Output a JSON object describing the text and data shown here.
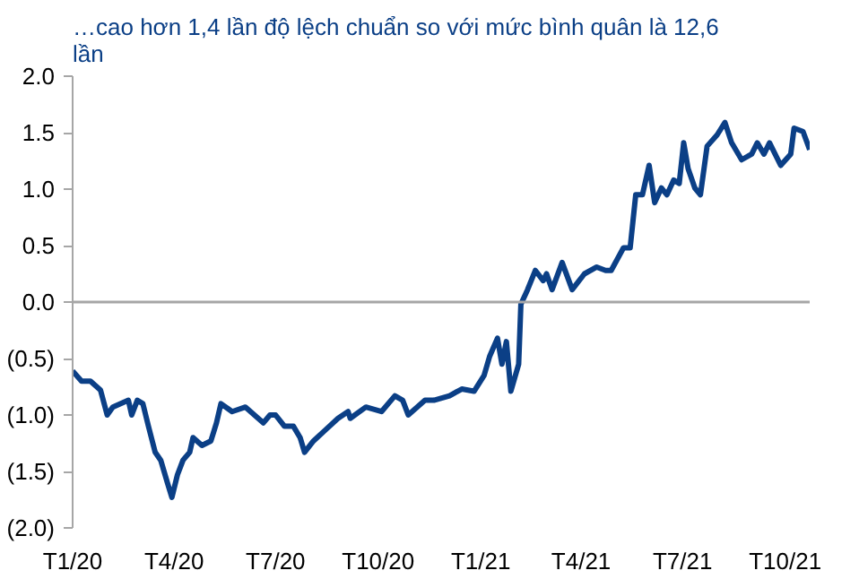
{
  "chart_data": {
    "type": "line",
    "title": "…cao hơn 1,4 lần độ lệch chuẩn so với mức bình quân là 12,6 lần",
    "series": [
      {
        "color": "#0b3f86",
        "x": [
          "2020-01-01",
          "2020-01-09",
          "2020-01-17",
          "2020-01-26",
          "2020-02-01",
          "2020-02-06",
          "2020-02-20",
          "2020-02-23",
          "2020-02-28",
          "2020-03-04",
          "2020-03-09",
          "2020-03-15",
          "2020-03-20",
          "2020-03-26",
          "2020-03-30",
          "2020-04-04",
          "2020-04-09",
          "2020-04-15",
          "2020-04-18",
          "2020-04-26",
          "2020-05-04",
          "2020-05-09",
          "2020-05-13",
          "2020-05-23",
          "2020-06-04",
          "2020-06-12",
          "2020-06-20",
          "2020-06-26",
          "2020-07-01",
          "2020-07-09",
          "2020-07-17",
          "2020-07-23",
          "2020-07-27",
          "2020-08-04",
          "2020-08-15",
          "2020-08-26",
          "2020-09-04",
          "2020-09-06",
          "2020-09-20",
          "2020-10-04",
          "2020-10-16",
          "2020-10-23",
          "2020-10-28",
          "2020-11-12",
          "2020-11-20",
          "2020-12-04",
          "2020-12-15",
          "2020-12-26",
          "2021-01-04",
          "2021-01-09",
          "2021-01-16",
          "2021-01-20",
          "2021-01-24",
          "2021-01-28",
          "2021-02-04",
          "2021-02-06",
          "2021-02-12",
          "2021-02-19",
          "2021-02-26",
          "2021-03-01",
          "2021-03-06",
          "2021-03-15",
          "2021-03-24",
          "2021-04-04",
          "2021-04-15",
          "2021-04-23",
          "2021-04-28",
          "2021-05-09",
          "2021-05-15",
          "2021-05-20",
          "2021-05-26",
          "2021-06-01",
          "2021-06-06",
          "2021-06-12",
          "2021-06-17",
          "2021-06-23",
          "2021-06-28",
          "2021-07-02",
          "2021-07-06",
          "2021-07-12",
          "2021-07-17",
          "2021-07-23",
          "2021-08-01",
          "2021-08-08",
          "2021-08-14",
          "2021-08-23",
          "2021-09-01",
          "2021-09-06",
          "2021-09-12",
          "2021-09-17",
          "2021-09-27",
          "2021-10-06",
          "2021-10-09",
          "2021-10-17",
          "2021-10-23"
        ],
        "values": [
          -0.61,
          -0.7,
          -0.7,
          -0.78,
          -1.0,
          -0.93,
          -0.87,
          -1.0,
          -0.87,
          -0.9,
          -1.1,
          -1.33,
          -1.4,
          -1.6,
          -1.73,
          -1.53,
          -1.4,
          -1.33,
          -1.2,
          -1.27,
          -1.23,
          -1.07,
          -0.9,
          -0.97,
          -0.93,
          -1.0,
          -1.07,
          -1.0,
          -1.0,
          -1.1,
          -1.1,
          -1.2,
          -1.33,
          -1.23,
          -1.13,
          -1.03,
          -0.97,
          -1.03,
          -0.93,
          -0.97,
          -0.83,
          -0.87,
          -1.0,
          -0.87,
          -0.87,
          -0.83,
          -0.77,
          -0.79,
          -0.65,
          -0.48,
          -0.32,
          -0.55,
          -0.35,
          -0.79,
          -0.55,
          -0.02,
          0.11,
          0.28,
          0.19,
          0.25,
          0.11,
          0.35,
          0.11,
          0.25,
          0.31,
          0.28,
          0.28,
          0.48,
          0.48,
          0.95,
          0.95,
          1.21,
          0.88,
          1.01,
          0.95,
          1.08,
          1.05,
          1.41,
          1.18,
          1.01,
          0.95,
          1.38,
          1.48,
          1.59,
          1.41,
          1.26,
          1.31,
          1.41,
          1.31,
          1.41,
          1.21,
          1.31,
          1.54,
          1.51,
          1.35
        ]
      }
    ],
    "xlim": [
      "2020-01-01",
      "2021-10-23"
    ],
    "xticks": [
      {
        "value": "2020-01-01",
        "label": "T1/20"
      },
      {
        "value": "2020-04-01",
        "label": "T4/20"
      },
      {
        "value": "2020-07-01",
        "label": "T7/20"
      },
      {
        "value": "2020-10-01",
        "label": "T10/20"
      },
      {
        "value": "2021-01-01",
        "label": "T1/21"
      },
      {
        "value": "2021-04-01",
        "label": "T4/21"
      },
      {
        "value": "2021-07-01",
        "label": "T7/21"
      },
      {
        "value": "2021-10-01",
        "label": "T10/21"
      }
    ],
    "ylim": [
      -2.0,
      2.0
    ],
    "yticks": [
      {
        "value": 2.0,
        "label": "2.0"
      },
      {
        "value": 1.5,
        "label": "1.5"
      },
      {
        "value": 1.0,
        "label": "1.0"
      },
      {
        "value": 0.5,
        "label": "0.5"
      },
      {
        "value": 0.0,
        "label": "0.0"
      },
      {
        "value": -0.5,
        "label": "(0.5)"
      },
      {
        "value": -1.0,
        "label": "(1.0)"
      },
      {
        "value": -1.5,
        "label": "(1.5)"
      },
      {
        "value": -2.0,
        "label": "(2.0)"
      }
    ],
    "ref_lines": [
      {
        "axis": "y",
        "value": 0,
        "color": "#a6a6a6"
      }
    ],
    "grid": false
  }
}
